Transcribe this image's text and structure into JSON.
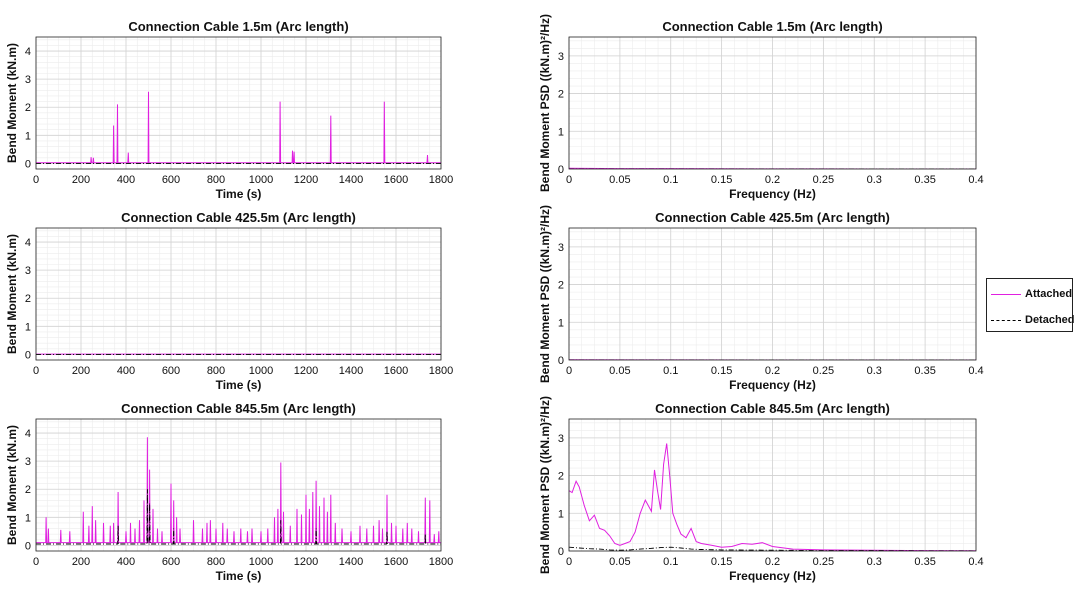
{
  "chart_data": [
    {
      "type": "line",
      "title": "Connection Cable 1.5m (Arc length)",
      "xlabel": "Time (s)",
      "ylabel": "Bend Moment (kN.m)",
      "xlim": [
        0,
        1800
      ],
      "ylim": [
        -0.2,
        4.5
      ],
      "xticks": [
        0,
        200,
        400,
        600,
        800,
        1000,
        1200,
        1400,
        1600,
        1800
      ],
      "xtick_labels": [
        "0",
        "200",
        "400",
        "600",
        "800",
        "1000",
        "1200",
        "1400",
        "1600",
        "1800"
      ],
      "yticks": [
        0,
        1,
        2,
        3,
        4
      ],
      "ytick_labels": [
        "0",
        "1",
        "2",
        "3",
        "4"
      ],
      "series": [
        {
          "name": "Attached",
          "baseline": 0.02,
          "spikes": [
            [
              245,
              0.22
            ],
            [
              255,
              0.2
            ],
            [
              345,
              1.35
            ],
            [
              362,
              2.1
            ],
            [
              410,
              0.38
            ],
            [
              500,
              2.55
            ],
            [
              1085,
              2.2
            ],
            [
              1140,
              0.45
            ],
            [
              1147,
              0.42
            ],
            [
              1310,
              1.7
            ],
            [
              1548,
              2.2
            ],
            [
              1740,
              0.3
            ]
          ]
        },
        {
          "name": "Detached",
          "baseline": 0.0,
          "spikes": []
        }
      ]
    },
    {
      "type": "line",
      "title": "Connection Cable 1.5m (Arc length)",
      "xlabel": "Frequency (Hz)",
      "ylabel": "Bend Moment PSD ((kN.m)²/Hz)",
      "xlim": [
        0,
        0.4
      ],
      "ylim": [
        0,
        3.5
      ],
      "xticks": [
        0,
        0.05,
        0.1,
        0.15,
        0.2,
        0.25,
        0.3,
        0.35,
        0.4
      ],
      "xtick_labels": [
        "0",
        "0.05",
        "0.1",
        "0.15",
        "0.2",
        "0.25",
        "0.3",
        "0.35",
        "0.4"
      ],
      "yticks": [
        0,
        1,
        2,
        3
      ],
      "ytick_labels": [
        "0",
        "1",
        "2",
        "3"
      ],
      "series": [
        {
          "name": "Attached",
          "x": [
            0,
            0.05,
            0.1,
            0.15,
            0.2,
            0.25,
            0.3,
            0.35,
            0.4
          ],
          "y": [
            0.02,
            0.01,
            0.01,
            0.005,
            0.003,
            0.002,
            0.001,
            0.001,
            0.001
          ]
        },
        {
          "name": "Detached",
          "x": [
            0,
            0.1,
            0.2,
            0.3,
            0.4
          ],
          "y": [
            0.003,
            0.002,
            0.001,
            0.001,
            0.0
          ]
        }
      ]
    },
    {
      "type": "line",
      "title": "Connection Cable 425.5m (Arc length)",
      "xlabel": "Time (s)",
      "ylabel": "Bend Moment (kN.m)",
      "xlim": [
        0,
        1800
      ],
      "ylim": [
        -0.2,
        4.5
      ],
      "xticks": [
        0,
        200,
        400,
        600,
        800,
        1000,
        1200,
        1400,
        1600,
        1800
      ],
      "xtick_labels": [
        "0",
        "200",
        "400",
        "600",
        "800",
        "1000",
        "1200",
        "1400",
        "1600",
        "1800"
      ],
      "yticks": [
        0,
        1,
        2,
        3,
        4
      ],
      "ytick_labels": [
        "0",
        "1",
        "2",
        "3",
        "4"
      ],
      "series": [
        {
          "name": "Attached",
          "baseline": 0.01,
          "spikes": []
        },
        {
          "name": "Detached",
          "baseline": 0.0,
          "spikes": []
        }
      ]
    },
    {
      "type": "line",
      "title": "Connection Cable 425.5m (Arc length)",
      "xlabel": "Frequency (Hz)",
      "ylabel": "Bend Moment PSD ((kN.m)²/Hz)",
      "xlim": [
        0,
        0.4
      ],
      "ylim": [
        0,
        3.5
      ],
      "xticks": [
        0,
        0.05,
        0.1,
        0.15,
        0.2,
        0.25,
        0.3,
        0.35,
        0.4
      ],
      "xtick_labels": [
        "0",
        "0.05",
        "0.1",
        "0.15",
        "0.2",
        "0.25",
        "0.3",
        "0.35",
        "0.4"
      ],
      "yticks": [
        0,
        1,
        2,
        3
      ],
      "ytick_labels": [
        "0",
        "1",
        "2",
        "3"
      ],
      "series": [
        {
          "name": "Attached",
          "x": [
            0,
            0.1,
            0.2,
            0.3,
            0.4
          ],
          "y": [
            0.005,
            0.002,
            0.001,
            0.001,
            0.0
          ]
        },
        {
          "name": "Detached",
          "x": [
            0,
            0.1,
            0.2,
            0.3,
            0.4
          ],
          "y": [
            0.002,
            0.001,
            0.0,
            0.0,
            0.0
          ]
        }
      ]
    },
    {
      "type": "line",
      "title": "Connection Cable 845.5m (Arc length)",
      "xlabel": "Time (s)",
      "ylabel": "Bend Moment (kN.m)",
      "xlim": [
        0,
        1800
      ],
      "ylim": [
        -0.2,
        4.5
      ],
      "xticks": [
        0,
        200,
        400,
        600,
        800,
        1000,
        1200,
        1400,
        1600,
        1800
      ],
      "xtick_labels": [
        "0",
        "200",
        "400",
        "600",
        "800",
        "1000",
        "1200",
        "1400",
        "1600",
        "1800"
      ],
      "yticks": [
        0,
        1,
        2,
        3,
        4
      ],
      "ytick_labels": [
        "0",
        "1",
        "2",
        "3",
        "4"
      ],
      "series": [
        {
          "name": "Attached",
          "baseline": 0.1,
          "spikes": [
            [
              45,
              1.0
            ],
            [
              55,
              0.6
            ],
            [
              110,
              0.55
            ],
            [
              150,
              0.5
            ],
            [
              210,
              1.2
            ],
            [
              235,
              0.7
            ],
            [
              250,
              1.4
            ],
            [
              265,
              0.9
            ],
            [
              300,
              0.8
            ],
            [
              330,
              0.7
            ],
            [
              345,
              0.8
            ],
            [
              365,
              1.9
            ],
            [
              400,
              0.5
            ],
            [
              420,
              0.8
            ],
            [
              440,
              0.6
            ],
            [
              460,
              0.9
            ],
            [
              480,
              1.6
            ],
            [
              495,
              3.85
            ],
            [
              505,
              2.7
            ],
            [
              520,
              1.3
            ],
            [
              540,
              0.6
            ],
            [
              560,
              0.5
            ],
            [
              600,
              2.2
            ],
            [
              612,
              1.6
            ],
            [
              625,
              1.0
            ],
            [
              640,
              0.6
            ],
            [
              700,
              0.9
            ],
            [
              740,
              0.6
            ],
            [
              760,
              0.8
            ],
            [
              775,
              0.9
            ],
            [
              800,
              0.6
            ],
            [
              830,
              0.8
            ],
            [
              850,
              0.6
            ],
            [
              880,
              0.5
            ],
            [
              910,
              0.6
            ],
            [
              940,
              0.5
            ],
            [
              960,
              0.6
            ],
            [
              1000,
              0.5
            ],
            [
              1030,
              0.6
            ],
            [
              1060,
              1.0
            ],
            [
              1075,
              1.3
            ],
            [
              1088,
              2.95
            ],
            [
              1100,
              1.2
            ],
            [
              1130,
              0.7
            ],
            [
              1160,
              1.3
            ],
            [
              1180,
              1.1
            ],
            [
              1200,
              1.8
            ],
            [
              1215,
              1.3
            ],
            [
              1230,
              1.9
            ],
            [
              1245,
              2.3
            ],
            [
              1260,
              1.4
            ],
            [
              1280,
              1.7
            ],
            [
              1295,
              1.2
            ],
            [
              1310,
              1.8
            ],
            [
              1330,
              0.8
            ],
            [
              1360,
              0.6
            ],
            [
              1400,
              0.5
            ],
            [
              1440,
              0.7
            ],
            [
              1470,
              0.6
            ],
            [
              1500,
              0.7
            ],
            [
              1525,
              0.9
            ],
            [
              1540,
              0.6
            ],
            [
              1560,
              1.8
            ],
            [
              1580,
              0.8
            ],
            [
              1600,
              0.7
            ],
            [
              1630,
              0.6
            ],
            [
              1650,
              0.8
            ],
            [
              1670,
              0.6
            ],
            [
              1700,
              0.5
            ],
            [
              1730,
              1.7
            ],
            [
              1750,
              1.6
            ],
            [
              1770,
              0.4
            ],
            [
              1790,
              0.5
            ]
          ]
        },
        {
          "name": "Detached",
          "baseline": 0.05,
          "spikes": [
            [
              365,
              0.7
            ],
            [
              495,
              2.0
            ],
            [
              505,
              1.5
            ],
            [
              612,
              0.6
            ],
            [
              1088,
              0.9
            ],
            [
              1245,
              0.6
            ],
            [
              1560,
              0.5
            ],
            [
              1730,
              0.4
            ]
          ]
        }
      ]
    },
    {
      "type": "line",
      "title": "Connection Cable 845.5m (Arc length)",
      "xlabel": "Frequency (Hz)",
      "ylabel": "Bend Moment PSD ((kN.m)²/Hz)",
      "xlim": [
        0,
        0.4
      ],
      "ylim": [
        0,
        3.5
      ],
      "xticks": [
        0,
        0.05,
        0.1,
        0.15,
        0.2,
        0.25,
        0.3,
        0.35,
        0.4
      ],
      "xtick_labels": [
        "0",
        "0.05",
        "0.1",
        "0.15",
        "0.2",
        "0.25",
        "0.3",
        "0.35",
        "0.4"
      ],
      "yticks": [
        0,
        1,
        2,
        3
      ],
      "ytick_labels": [
        "0",
        "1",
        "2",
        "3"
      ],
      "series": [
        {
          "name": "Attached",
          "x": [
            0,
            0.003,
            0.007,
            0.01,
            0.015,
            0.02,
            0.025,
            0.03,
            0.035,
            0.04,
            0.045,
            0.05,
            0.055,
            0.06,
            0.065,
            0.07,
            0.075,
            0.078,
            0.081,
            0.084,
            0.087,
            0.09,
            0.093,
            0.096,
            0.099,
            0.102,
            0.106,
            0.11,
            0.115,
            0.12,
            0.125,
            0.13,
            0.14,
            0.15,
            0.16,
            0.17,
            0.18,
            0.19,
            0.2,
            0.22,
            0.25,
            0.3,
            0.35,
            0.4
          ],
          "y": [
            1.6,
            1.55,
            1.85,
            1.7,
            1.2,
            0.8,
            0.95,
            0.6,
            0.55,
            0.4,
            0.2,
            0.15,
            0.2,
            0.25,
            0.5,
            1.0,
            1.35,
            1.2,
            1.05,
            2.15,
            1.6,
            1.1,
            2.3,
            2.85,
            2.0,
            1.0,
            0.7,
            0.45,
            0.35,
            0.6,
            0.25,
            0.2,
            0.15,
            0.1,
            0.12,
            0.2,
            0.18,
            0.22,
            0.12,
            0.05,
            0.03,
            0.02,
            0.01,
            0.005
          ]
        },
        {
          "name": "Detached",
          "x": [
            0,
            0.01,
            0.02,
            0.03,
            0.04,
            0.05,
            0.06,
            0.07,
            0.08,
            0.09,
            0.1,
            0.11,
            0.12,
            0.13,
            0.15,
            0.2,
            0.25,
            0.3,
            0.35,
            0.4
          ],
          "y": [
            0.1,
            0.08,
            0.06,
            0.05,
            0.03,
            0.02,
            0.03,
            0.05,
            0.07,
            0.09,
            0.1,
            0.08,
            0.05,
            0.04,
            0.03,
            0.02,
            0.01,
            0.01,
            0.005,
            0.002
          ]
        }
      ]
    }
  ],
  "legend": {
    "entries": [
      {
        "name": "Attached",
        "color": "#e020e0",
        "style": "solid"
      },
      {
        "name": "Detached",
        "color": "#000000",
        "style": "dashdot"
      }
    ]
  },
  "colors": {
    "attached": "#e020e0",
    "detached": "#000000",
    "grid_minor": "#ececec",
    "grid_major": "#d2d2d2",
    "axis": "#222222"
  }
}
